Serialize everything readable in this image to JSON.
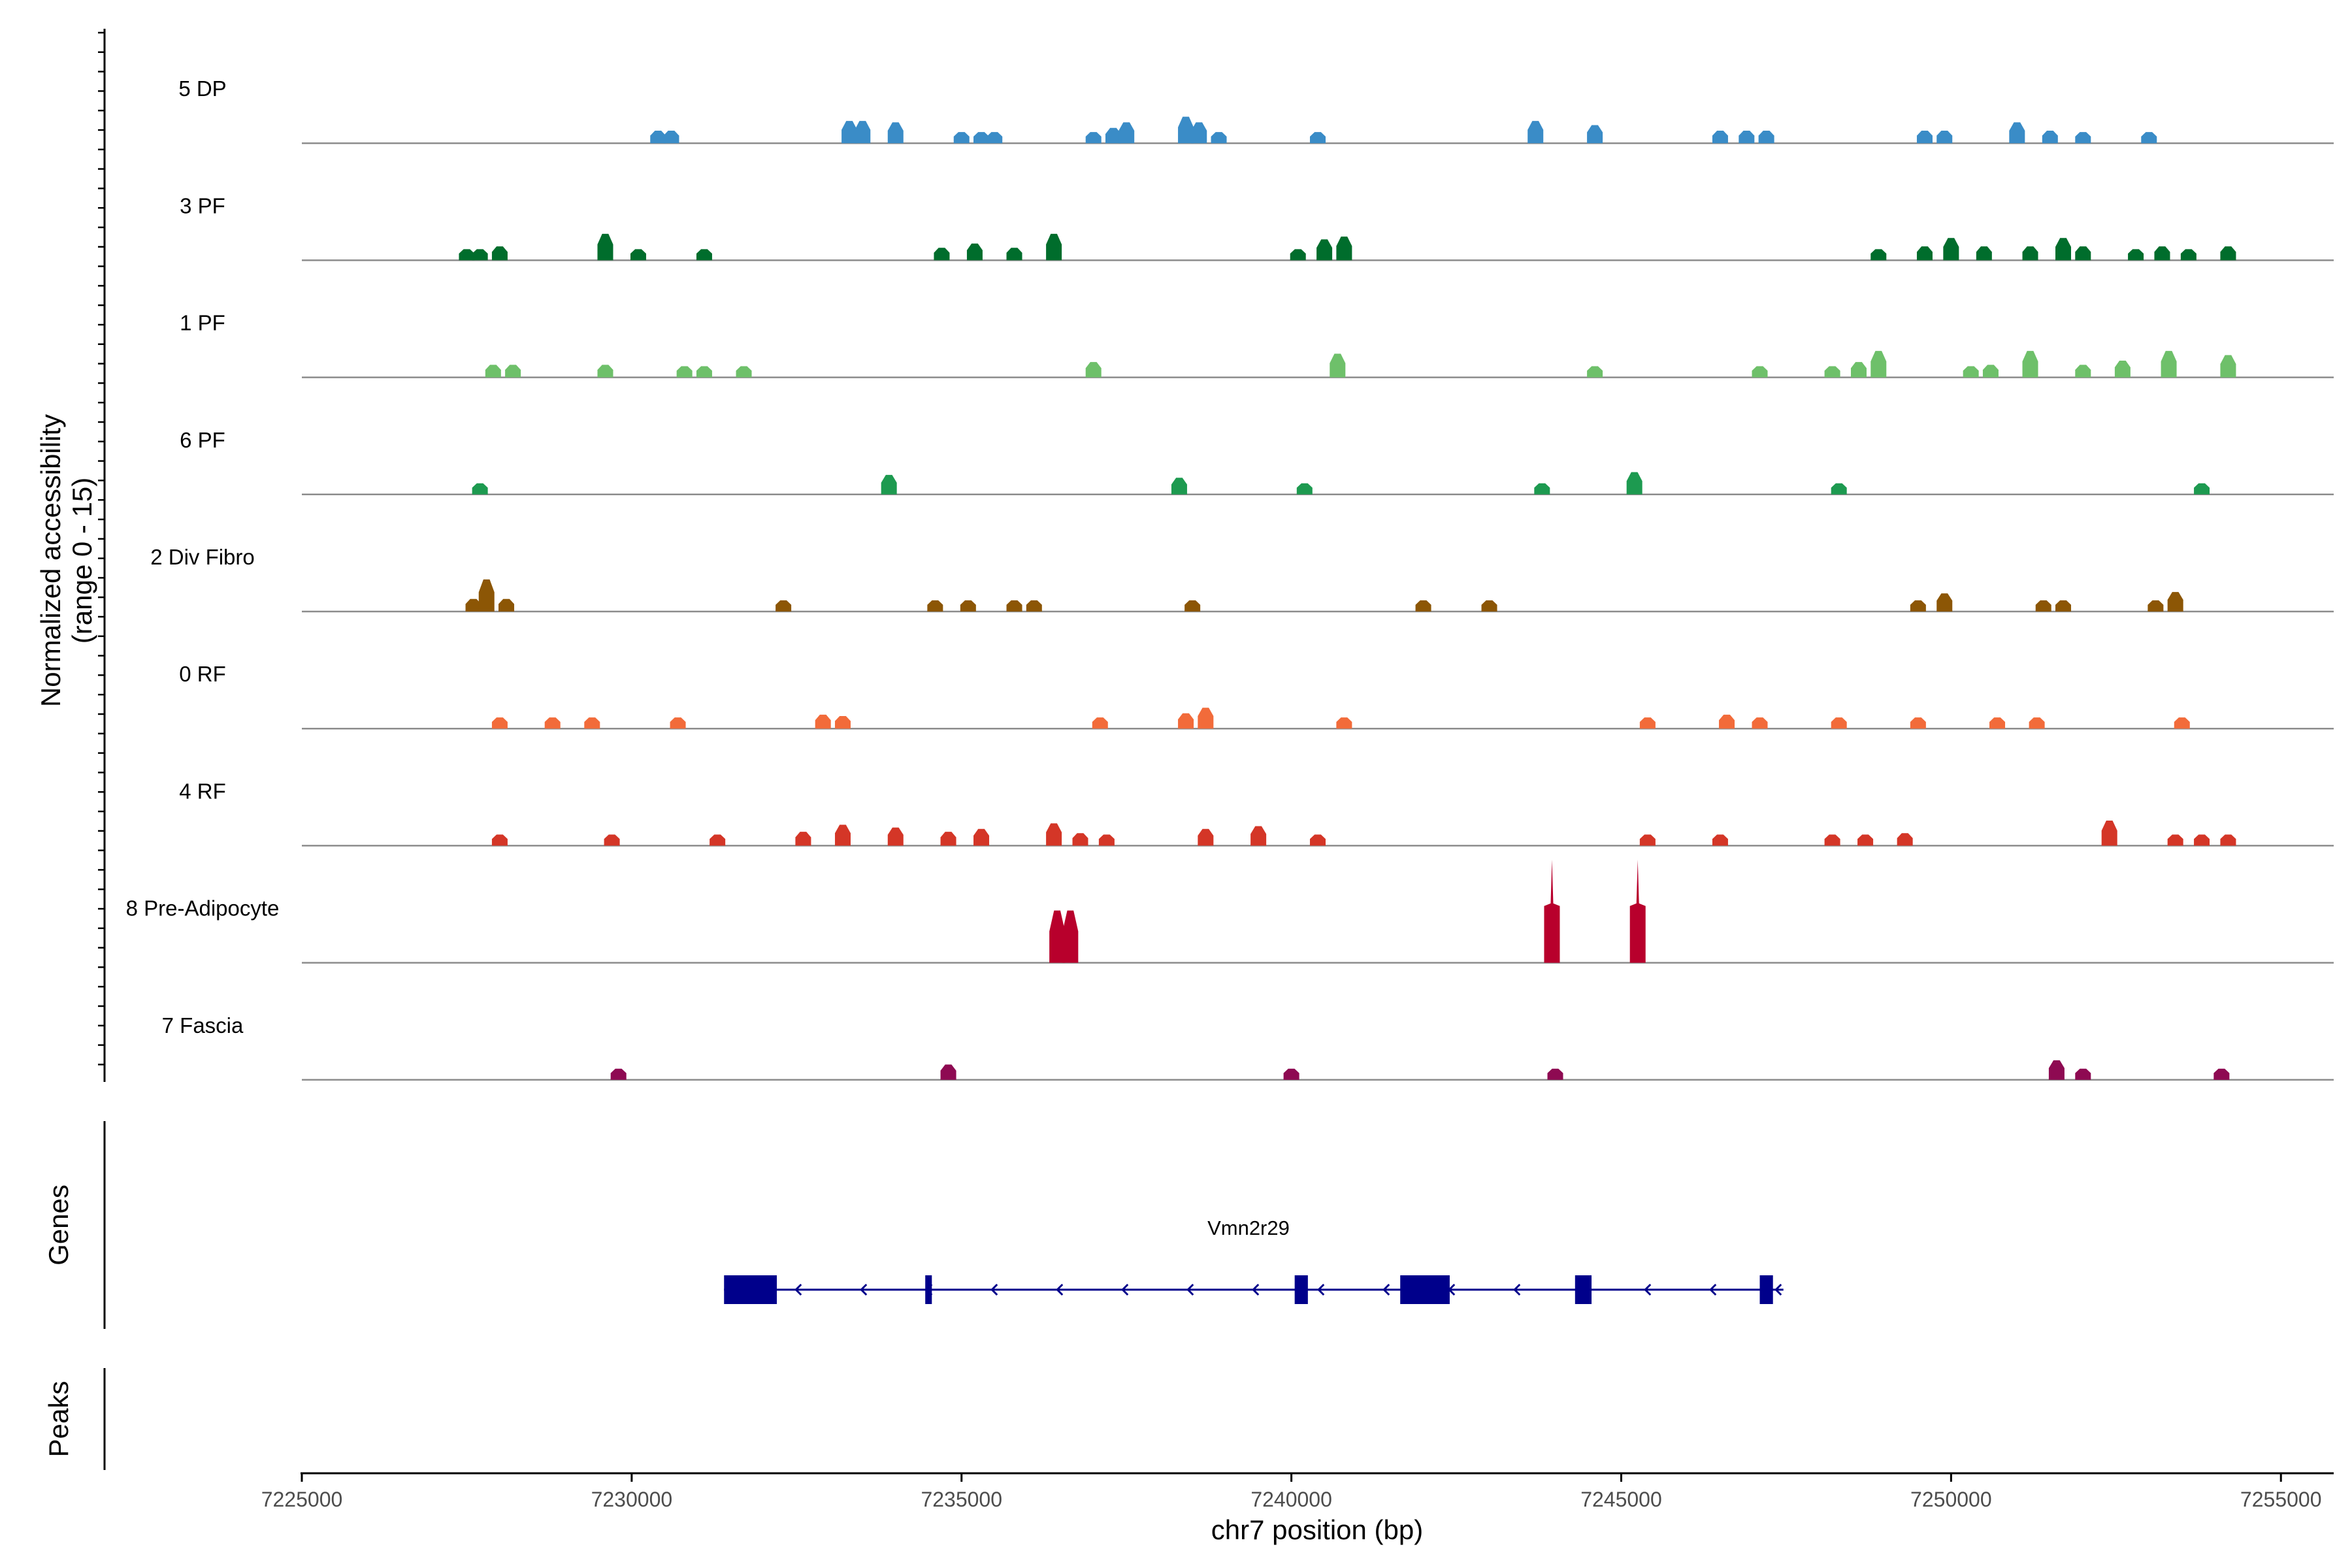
{
  "chart_data": {
    "type": "coverage",
    "xlabel": "chr7 position (bp)",
    "ylabel": "Normalized accessibility",
    "ylabel_range": "(range 0 - 15)",
    "xlim": [
      7225000,
      7255800
    ],
    "ylim": [
      0,
      15
    ],
    "x_ticks": [
      7225000,
      7230000,
      7235000,
      7240000,
      7245000,
      7250000,
      7255000
    ],
    "x_tick_labels": [
      "7225000",
      "7230000",
      "7235000",
      "7240000",
      "7245000",
      "7250000",
      "7255000"
    ],
    "tracks": [
      {
        "name": "5 DP",
        "color": "#3a8cc7",
        "peaks": [
          [
            7230400,
            1.8
          ],
          [
            7230600,
            1.8
          ],
          [
            7233300,
            3.2
          ],
          [
            7233500,
            3.2
          ],
          [
            7234000,
            3.0
          ],
          [
            7235000,
            1.6
          ],
          [
            7235300,
            1.6
          ],
          [
            7235500,
            1.6
          ],
          [
            7237000,
            1.6
          ],
          [
            7237300,
            2.2
          ],
          [
            7237500,
            3.0
          ],
          [
            7238400,
            3.8
          ],
          [
            7238600,
            3.0
          ],
          [
            7238900,
            1.6
          ],
          [
            7240400,
            1.6
          ],
          [
            7243700,
            3.2
          ],
          [
            7244600,
            2.6
          ],
          [
            7246500,
            1.8
          ],
          [
            7246900,
            1.8
          ],
          [
            7247200,
            1.8
          ],
          [
            7249600,
            1.8
          ],
          [
            7249900,
            1.8
          ],
          [
            7251000,
            3.0
          ],
          [
            7251500,
            1.8
          ],
          [
            7252000,
            1.6
          ],
          [
            7253000,
            1.6
          ]
        ]
      },
      {
        "name": "3 PF",
        "color": "#006d2c",
        "peaks": [
          [
            7227500,
            1.6
          ],
          [
            7227700,
            1.6
          ],
          [
            7228000,
            2.0
          ],
          [
            7229600,
            3.8
          ],
          [
            7230100,
            1.6
          ],
          [
            7231100,
            1.6
          ],
          [
            7234700,
            1.8
          ],
          [
            7235200,
            2.4
          ],
          [
            7235800,
            1.8
          ],
          [
            7236400,
            3.8
          ],
          [
            7240100,
            1.6
          ],
          [
            7240500,
            3.0
          ],
          [
            7240800,
            3.4
          ],
          [
            7248900,
            1.6
          ],
          [
            7249600,
            2.0
          ],
          [
            7250000,
            3.2
          ],
          [
            7250500,
            2.0
          ],
          [
            7251200,
            2.0
          ],
          [
            7251700,
            3.2
          ],
          [
            7252000,
            2.0
          ],
          [
            7252800,
            1.6
          ],
          [
            7253200,
            2.0
          ],
          [
            7253600,
            1.6
          ],
          [
            7254200,
            2.0
          ]
        ]
      },
      {
        "name": "1 PF",
        "color": "#6ec06a",
        "peaks": [
          [
            7227900,
            1.8
          ],
          [
            7228200,
            1.8
          ],
          [
            7229600,
            1.8
          ],
          [
            7230800,
            1.6
          ],
          [
            7231100,
            1.6
          ],
          [
            7231700,
            1.6
          ],
          [
            7237000,
            2.2
          ],
          [
            7240700,
            3.4
          ],
          [
            7244600,
            1.6
          ],
          [
            7247100,
            1.6
          ],
          [
            7248200,
            1.6
          ],
          [
            7248600,
            2.2
          ],
          [
            7248900,
            3.8
          ],
          [
            7250300,
            1.6
          ],
          [
            7250600,
            1.8
          ],
          [
            7251200,
            3.8
          ],
          [
            7252000,
            1.8
          ],
          [
            7252600,
            2.4
          ],
          [
            7253300,
            3.8
          ],
          [
            7254200,
            3.2
          ]
        ]
      },
      {
        "name": "6 PF",
        "color": "#1d9a50",
        "peaks": [
          [
            7227700,
            1.6
          ],
          [
            7233900,
            2.8
          ],
          [
            7238300,
            2.4
          ],
          [
            7240200,
            1.6
          ],
          [
            7243800,
            1.6
          ],
          [
            7245200,
            3.2
          ],
          [
            7248300,
            1.6
          ],
          [
            7253800,
            1.6
          ]
        ]
      },
      {
        "name": "2 Div Fibro",
        "color": "#8c5605",
        "peaks": [
          [
            7227600,
            1.8
          ],
          [
            7227800,
            4.6
          ],
          [
            7228100,
            1.8
          ],
          [
            7232300,
            1.6
          ],
          [
            7234600,
            1.6
          ],
          [
            7235100,
            1.6
          ],
          [
            7235800,
            1.6
          ],
          [
            7236100,
            1.6
          ],
          [
            7238500,
            1.6
          ],
          [
            7242000,
            1.6
          ],
          [
            7243000,
            1.6
          ],
          [
            7249500,
            1.6
          ],
          [
            7249900,
            2.6
          ],
          [
            7251400,
            1.6
          ],
          [
            7251700,
            1.6
          ],
          [
            7253100,
            1.6
          ],
          [
            7253400,
            2.8
          ]
        ]
      },
      {
        "name": "0 RF",
        "color": "#f26b3a",
        "peaks": [
          [
            7228000,
            1.6
          ],
          [
            7228800,
            1.6
          ],
          [
            7229400,
            1.6
          ],
          [
            7230700,
            1.6
          ],
          [
            7232900,
            2.0
          ],
          [
            7233200,
            1.8
          ],
          [
            7237100,
            1.6
          ],
          [
            7238400,
            2.2
          ],
          [
            7238700,
            3.0
          ],
          [
            7240800,
            1.6
          ],
          [
            7245400,
            1.6
          ],
          [
            7246600,
            2.0
          ],
          [
            7247100,
            1.6
          ],
          [
            7248300,
            1.6
          ],
          [
            7249500,
            1.6
          ],
          [
            7250700,
            1.6
          ],
          [
            7251300,
            1.6
          ],
          [
            7253500,
            1.6
          ]
        ]
      },
      {
        "name": "4 RF",
        "color": "#d43627",
        "peaks": [
          [
            7228000,
            1.6
          ],
          [
            7229700,
            1.6
          ],
          [
            7231300,
            1.6
          ],
          [
            7232600,
            2.0
          ],
          [
            7233200,
            3.0
          ],
          [
            7234000,
            2.6
          ],
          [
            7234800,
            2.0
          ],
          [
            7235300,
            2.4
          ],
          [
            7236400,
            3.2
          ],
          [
            7236800,
            1.8
          ],
          [
            7237200,
            1.6
          ],
          [
            7238700,
            2.4
          ],
          [
            7239500,
            2.8
          ],
          [
            7240400,
            1.6
          ],
          [
            7245400,
            1.6
          ],
          [
            7246500,
            1.6
          ],
          [
            7248200,
            1.6
          ],
          [
            7248700,
            1.6
          ],
          [
            7249300,
            1.8
          ],
          [
            7252400,
            3.6
          ],
          [
            7253400,
            1.6
          ],
          [
            7253800,
            1.6
          ],
          [
            7254200,
            1.6
          ]
        ]
      },
      {
        "name": "8 Pre-Adipocyte",
        "color": "#b8002c",
        "peaks": [
          [
            7236450,
            7.5
          ],
          [
            7236650,
            7.5
          ],
          [
            7243950,
            14.8
          ],
          [
            7245250,
            14.8
          ]
        ]
      },
      {
        "name": "7 Fascia",
        "color": "#8e0a52",
        "peaks": [
          [
            7229800,
            1.6
          ],
          [
            7234800,
            2.2
          ],
          [
            7240000,
            1.6
          ],
          [
            7244000,
            1.6
          ],
          [
            7251600,
            2.8
          ],
          [
            7252000,
            1.6
          ],
          [
            7254100,
            1.6
          ]
        ]
      }
    ],
    "genes_label": "Genes",
    "peaks_label": "Peaks",
    "gene": {
      "name": "Vmn2r29",
      "start": 7231400,
      "end": 7247300,
      "strand": "-",
      "exons": [
        [
          7231400,
          7232200
        ],
        [
          7234450,
          7234550
        ],
        [
          7240050,
          7240250
        ],
        [
          7241650,
          7242400
        ],
        [
          7244300,
          7244550
        ],
        [
          7247100,
          7247300
        ]
      ]
    },
    "colors": {
      "baseline": "#8c8c8c",
      "axis": "#000000",
      "gene": "#00008b"
    }
  }
}
